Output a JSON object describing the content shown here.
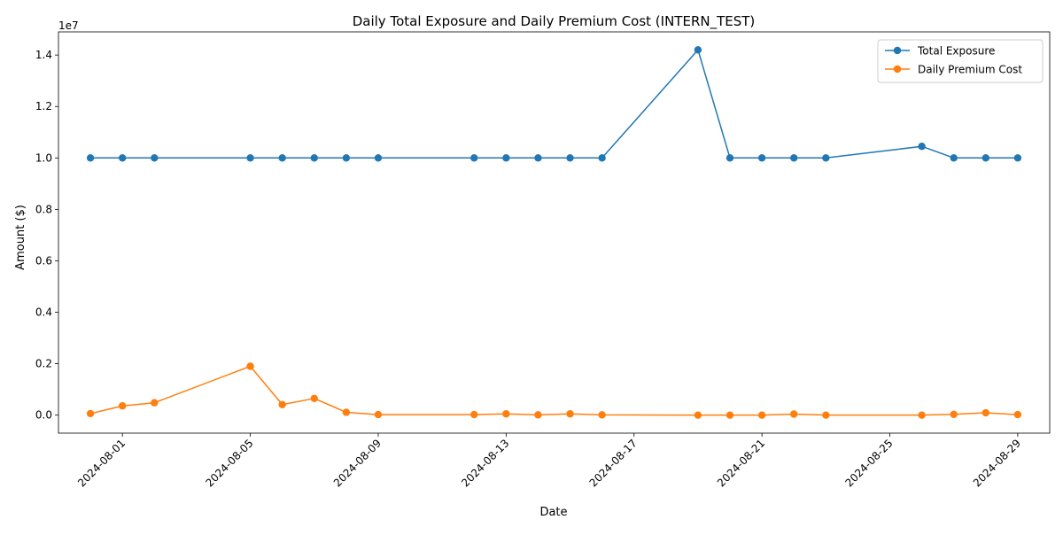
{
  "chart_data": {
    "type": "line",
    "title": "Daily Total Exposure and Daily Premium Cost (INTERN_TEST)",
    "xlabel": "Date",
    "ylabel": "Amount ($)",
    "y_offset_label": "1e7",
    "ylim": [
      -700000,
      14900000
    ],
    "xlim": [
      "2024-07-30",
      "2024-08-30"
    ],
    "x_ticks": [
      "2024-08-01",
      "2024-08-05",
      "2024-08-09",
      "2024-08-13",
      "2024-08-17",
      "2024-08-21",
      "2024-08-25",
      "2024-08-29"
    ],
    "y_ticks": [
      0,
      2000000,
      4000000,
      6000000,
      8000000,
      10000000,
      12000000,
      14000000
    ],
    "y_tick_labels": [
      "0.0",
      "0.2",
      "0.4",
      "0.6",
      "0.8",
      "1.0",
      "1.2",
      "1.4"
    ],
    "grid": false,
    "legend_position": "upper right",
    "series": [
      {
        "name": "Total Exposure",
        "color": "#1f77b4",
        "marker": "circle",
        "points": [
          [
            "2024-07-31",
            10000000
          ],
          [
            "2024-08-01",
            10000000
          ],
          [
            "2024-08-02",
            10000000
          ],
          [
            "2024-08-05",
            10000000
          ],
          [
            "2024-08-06",
            10000000
          ],
          [
            "2024-08-07",
            10000000
          ],
          [
            "2024-08-08",
            10000000
          ],
          [
            "2024-08-09",
            10000000
          ],
          [
            "2024-08-12",
            10000000
          ],
          [
            "2024-08-13",
            10000000
          ],
          [
            "2024-08-14",
            10000000
          ],
          [
            "2024-08-15",
            10000000
          ],
          [
            "2024-08-16",
            10000000
          ],
          [
            "2024-08-19",
            14200000
          ],
          [
            "2024-08-20",
            10000000
          ],
          [
            "2024-08-21",
            10000000
          ],
          [
            "2024-08-22",
            10000000
          ],
          [
            "2024-08-23",
            10000000
          ],
          [
            "2024-08-26",
            10450000
          ],
          [
            "2024-08-27",
            10000000
          ],
          [
            "2024-08-28",
            10000000
          ],
          [
            "2024-08-29",
            10000000
          ]
        ]
      },
      {
        "name": "Daily Premium Cost",
        "color": "#ff7f0e",
        "marker": "circle",
        "points": [
          [
            "2024-07-31",
            60000
          ],
          [
            "2024-08-01",
            360000
          ],
          [
            "2024-08-02",
            480000
          ],
          [
            "2024-08-05",
            1900000
          ],
          [
            "2024-08-06",
            410000
          ],
          [
            "2024-08-07",
            650000
          ],
          [
            "2024-08-08",
            110000
          ],
          [
            "2024-08-09",
            20000
          ],
          [
            "2024-08-12",
            20000
          ],
          [
            "2024-08-13",
            50000
          ],
          [
            "2024-08-14",
            10000
          ],
          [
            "2024-08-15",
            50000
          ],
          [
            "2024-08-16",
            10000
          ],
          [
            "2024-08-19",
            0
          ],
          [
            "2024-08-20",
            0
          ],
          [
            "2024-08-21",
            0
          ],
          [
            "2024-08-22",
            40000
          ],
          [
            "2024-08-23",
            0
          ],
          [
            "2024-08-26",
            0
          ],
          [
            "2024-08-27",
            30000
          ],
          [
            "2024-08-28",
            90000
          ],
          [
            "2024-08-29",
            20000
          ]
        ]
      }
    ]
  }
}
